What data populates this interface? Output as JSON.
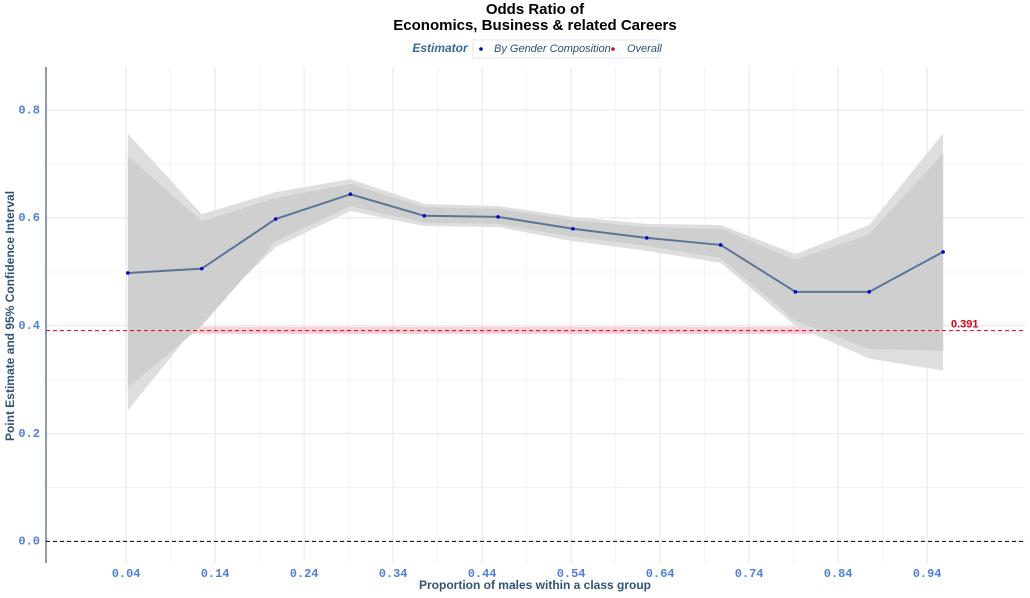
{
  "chart_data": {
    "type": "line",
    "title": [
      "Odds Ratio of",
      "Economics, Business & related Careers"
    ],
    "x_label": "Proportion of males within a class group",
    "y_label": "Point Estimate and 95% Confidence Interval",
    "legend_title": "Estimator",
    "xlim": [
      -0.05,
      1.05
    ],
    "ylim": [
      -0.04,
      0.88
    ],
    "xticks": [
      0.04,
      0.14,
      0.24,
      0.34,
      0.44,
      0.54,
      0.64,
      0.74,
      0.84,
      0.94
    ],
    "yticks": [
      {
        "value": 0,
        "label": "0.0"
      },
      0.2,
      0.4,
      0.6,
      0.8
    ],
    "grid": true,
    "hline": 0,
    "series": [
      {
        "name": "By Gender Composition",
        "color": "#0000cc",
        "line_color": "#5b7595",
        "x": [
          0.042,
          0.125,
          0.208,
          0.292,
          0.375,
          0.458,
          0.542,
          0.625,
          0.708,
          0.792,
          0.875,
          0.958
        ],
        "values": [
          0.498,
          0.506,
          0.598,
          0.644,
          0.604,
          0.602,
          0.58,
          0.563,
          0.55,
          0.463,
          0.463,
          0.537
        ],
        "upper_outer": [
          0.756,
          0.607,
          0.648,
          0.672,
          0.626,
          0.622,
          0.602,
          0.589,
          0.587,
          0.533,
          0.587,
          0.757
        ],
        "lower_outer": [
          0.243,
          0.413,
          0.546,
          0.613,
          0.585,
          0.583,
          0.557,
          0.539,
          0.517,
          0.4,
          0.339,
          0.317
        ],
        "upper_inner": [
          0.715,
          0.594,
          0.637,
          0.663,
          0.62,
          0.617,
          0.596,
          0.583,
          0.58,
          0.522,
          0.57,
          0.72
        ],
        "lower_inner": [
          0.285,
          0.4,
          0.557,
          0.622,
          0.591,
          0.589,
          0.565,
          0.548,
          0.526,
          0.409,
          0.357,
          0.354
        ]
      }
    ],
    "overall": {
      "name": "Overall",
      "color": "#e0001a",
      "value": 0.391,
      "band": [
        0.385,
        0.398
      ]
    }
  }
}
